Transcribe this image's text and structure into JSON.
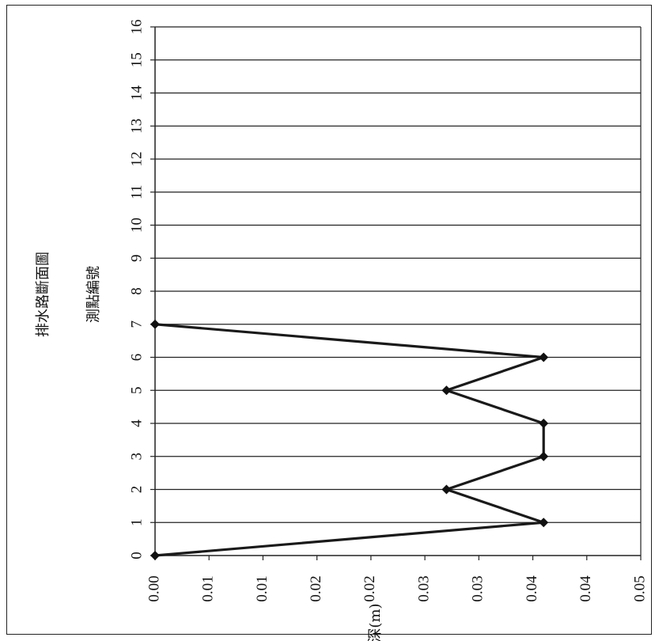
{
  "chart_data": {
    "type": "line",
    "title": "排水路斷面圖",
    "xlabel": "測點編號",
    "ylabel": "水深(m)",
    "x": [
      0,
      1,
      2,
      3,
      4,
      5,
      6,
      7
    ],
    "y": [
      0.0,
      0.04,
      0.03,
      0.04,
      0.04,
      0.03,
      0.04,
      0.0
    ],
    "xlim": [
      0,
      16
    ],
    "ylim": [
      0,
      0.05
    ],
    "x_ticks": [
      "0",
      "1",
      "2",
      "3",
      "4",
      "5",
      "6",
      "7",
      "8",
      "9",
      "10",
      "11",
      "12",
      "13",
      "14",
      "15",
      "16"
    ],
    "y_tick_labels": [
      "0.00",
      "0.01",
      "0.01",
      "0.02",
      "0.02",
      "0.03",
      "0.03",
      "0.04",
      "0.04",
      "0.05"
    ],
    "grid": true,
    "orientation": "rotated-90"
  }
}
